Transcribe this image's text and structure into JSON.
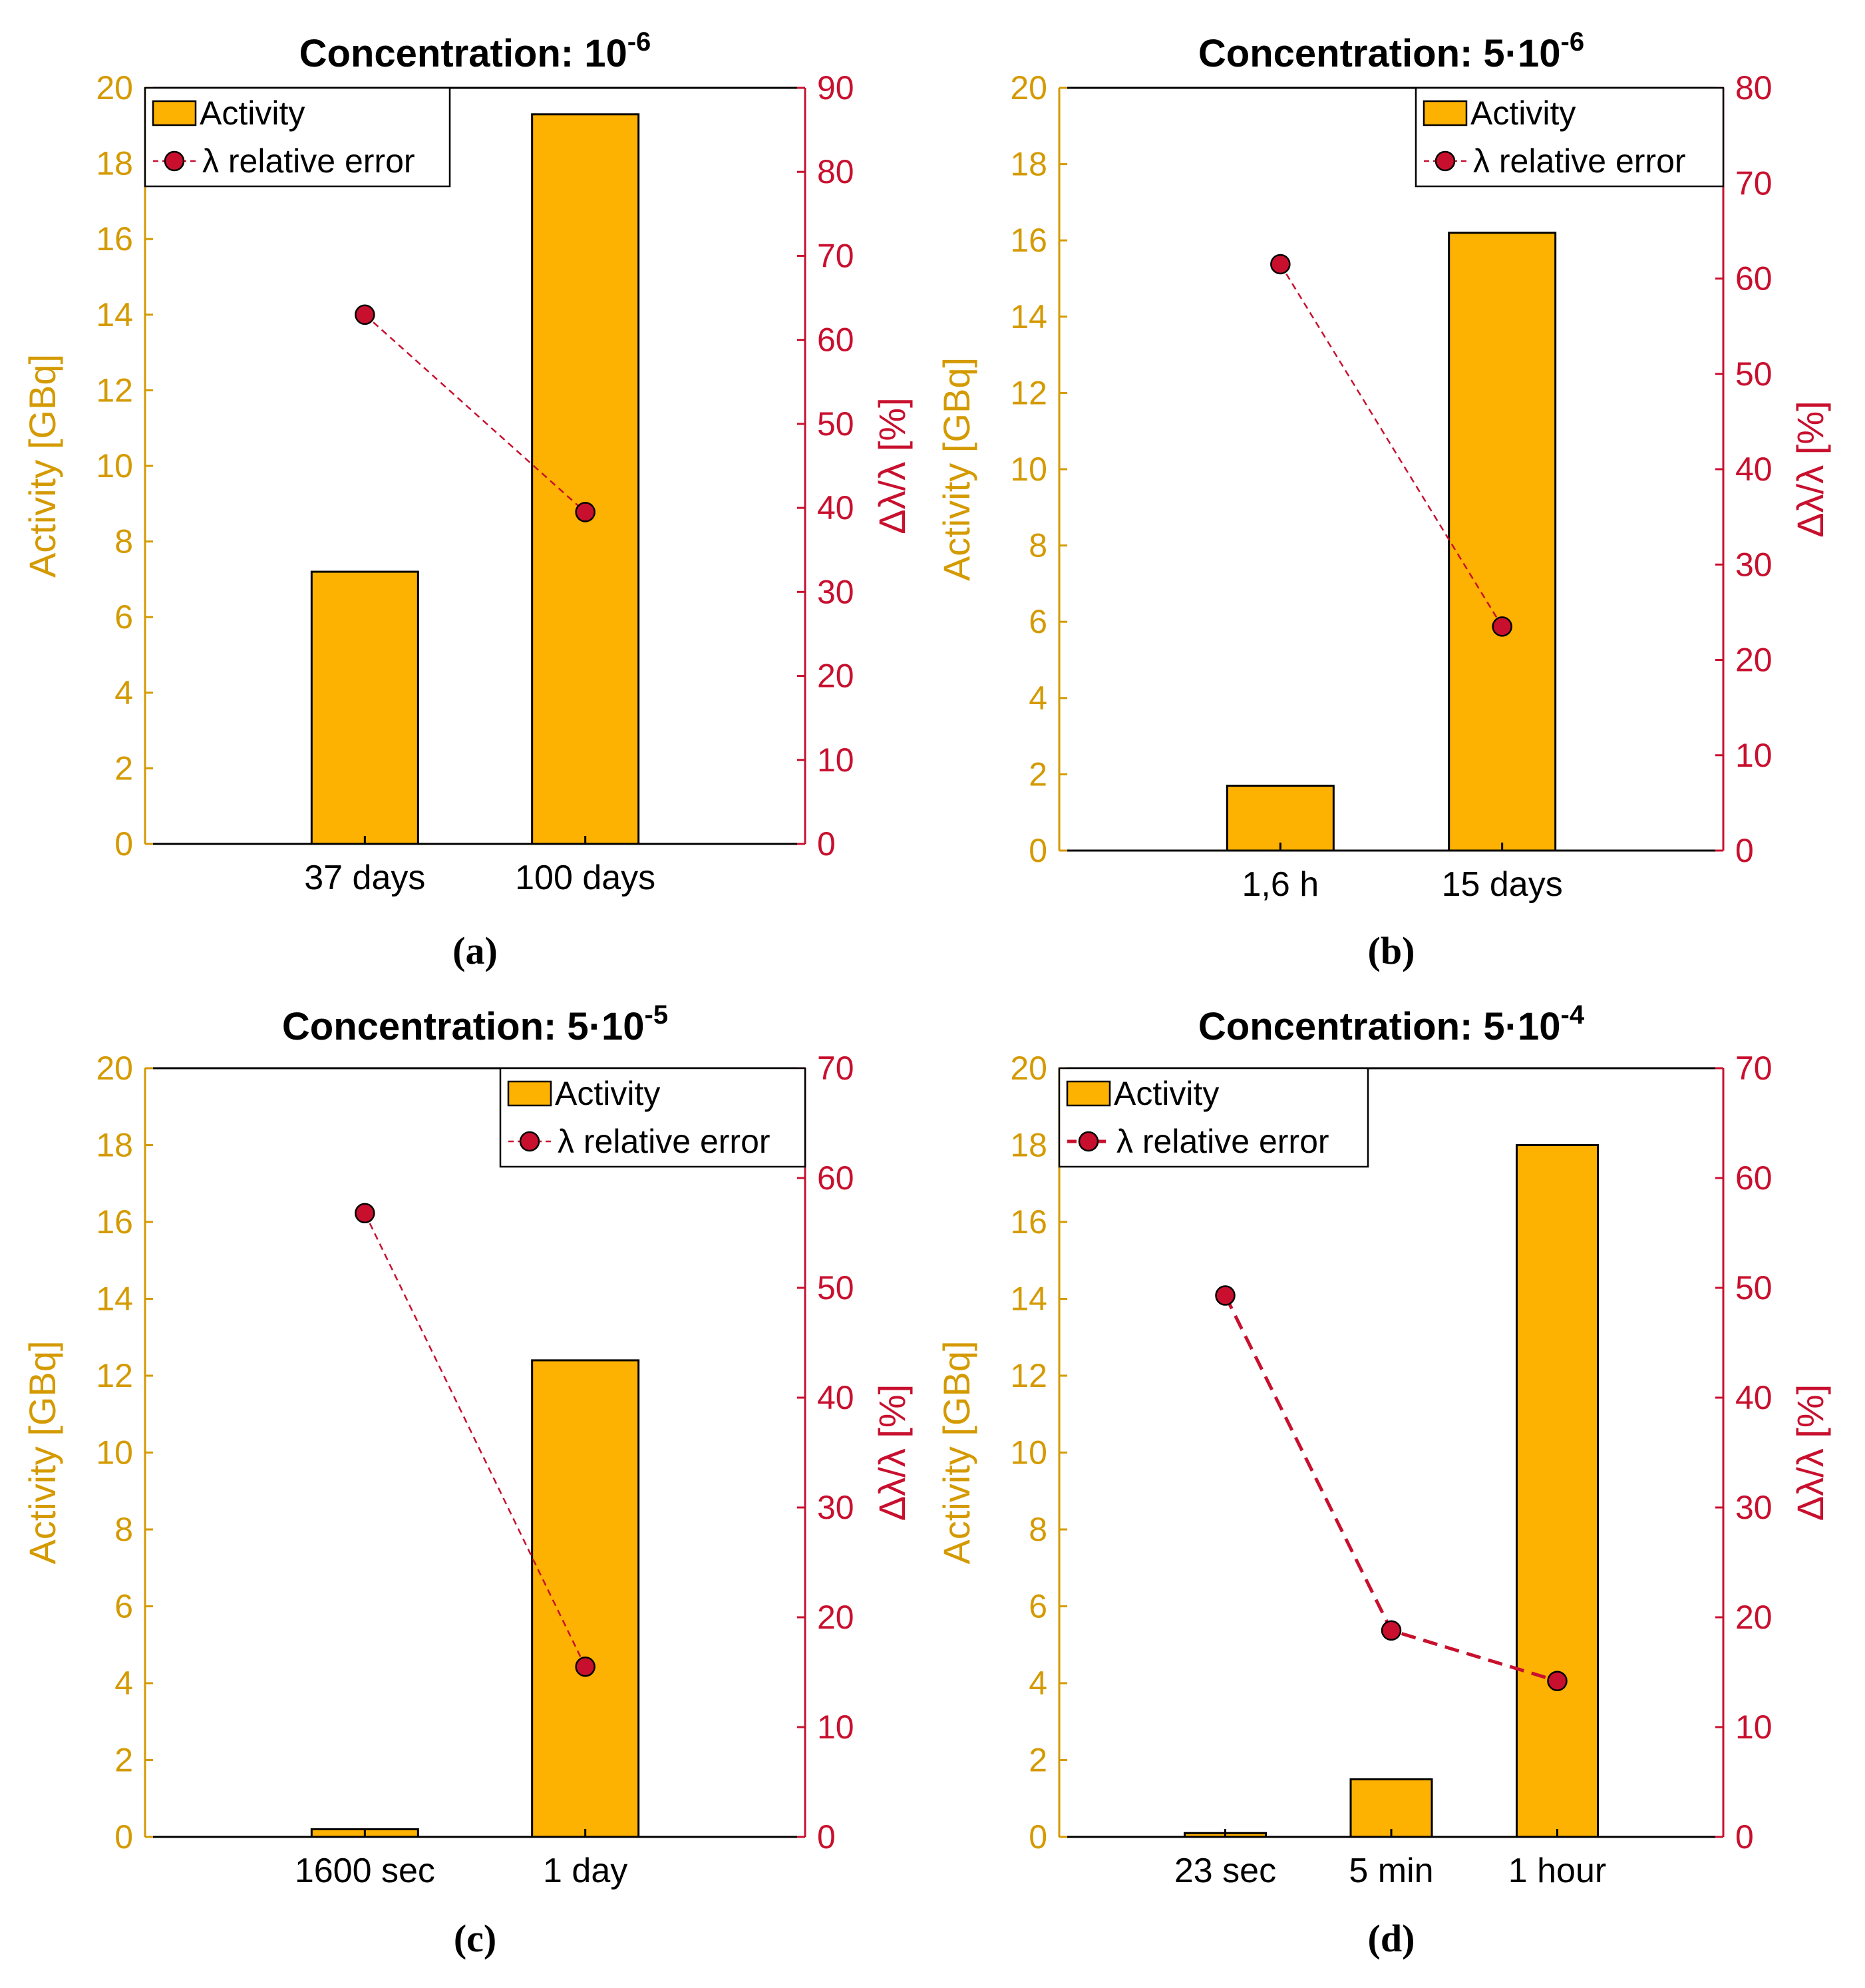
{
  "colors": {
    "activity": "#FDB100",
    "activity_axis": "#D49A00",
    "error": "#C8102E",
    "axes": "#000000"
  },
  "legend": {
    "activity": "Activity",
    "error": "λ relative error"
  },
  "chart_data": [
    {
      "type": "bar",
      "panel": "(a)",
      "title_prefix": "Concentration: ",
      "title_base": "10",
      "title_exp": "-6",
      "categories": [
        "37 days",
        "100 days"
      ],
      "series": [
        {
          "name": "Activity",
          "axis": "left",
          "values": [
            7.2,
            19.3
          ]
        },
        {
          "name": "λ relative error",
          "axis": "right",
          "type": "line",
          "style": "dashed",
          "values": [
            63,
            39.5
          ]
        }
      ],
      "ylabel_left": "Activity [GBq]",
      "ylabel_right": "Δλ/λ [%]",
      "ylim_left": [
        0,
        20
      ],
      "ylim_right": [
        0,
        90
      ],
      "yticks_left": [
        0,
        2,
        4,
        6,
        8,
        10,
        12,
        14,
        16,
        18,
        20
      ],
      "yticks_right": [
        0,
        10,
        20,
        30,
        40,
        50,
        60,
        70,
        80,
        90
      ],
      "legend_position": "top-left"
    },
    {
      "type": "bar",
      "panel": "(b)",
      "title_prefix": "Concentration: 5·",
      "title_base": "10",
      "title_exp": "-6",
      "categories": [
        "1,6 h",
        "15 days"
      ],
      "series": [
        {
          "name": "Activity",
          "axis": "left",
          "values": [
            1.7,
            16.2
          ]
        },
        {
          "name": "λ relative error",
          "axis": "right",
          "type": "line",
          "style": "dashed",
          "values": [
            61.5,
            23.5
          ]
        }
      ],
      "ylabel_left": "Activity [GBq]",
      "ylabel_right": "Δλ/λ [%]",
      "ylim_left": [
        0,
        20
      ],
      "ylim_right": [
        0,
        80
      ],
      "yticks_left": [
        0,
        2,
        4,
        6,
        8,
        10,
        12,
        14,
        16,
        18,
        20
      ],
      "yticks_right": [
        0,
        10,
        20,
        30,
        40,
        50,
        60,
        70,
        80
      ],
      "legend_position": "top-right"
    },
    {
      "type": "bar",
      "panel": "(c)",
      "title_prefix": "Concentration: 5·",
      "title_base": "10",
      "title_exp": "-5",
      "categories": [
        "1600 sec",
        "1 day"
      ],
      "series": [
        {
          "name": "Activity",
          "axis": "left",
          "values": [
            0.2,
            12.4
          ]
        },
        {
          "name": "λ relative error",
          "axis": "right",
          "type": "line",
          "style": "dashed",
          "values": [
            56.8,
            15.5
          ]
        }
      ],
      "ylabel_left": "Activity [GBq]",
      "ylabel_right": "Δλ/λ [%]",
      "ylim_left": [
        0,
        20
      ],
      "ylim_right": [
        0,
        70
      ],
      "yticks_left": [
        0,
        2,
        4,
        6,
        8,
        10,
        12,
        14,
        16,
        18,
        20
      ],
      "yticks_right": [
        0,
        10,
        20,
        30,
        40,
        50,
        60,
        70
      ],
      "legend_position": "top-right"
    },
    {
      "type": "bar",
      "panel": "(d)",
      "title_prefix": "Concentration: 5·",
      "title_base": "10",
      "title_exp": "-4",
      "categories": [
        "23 sec",
        "5 min",
        "1 hour"
      ],
      "series": [
        {
          "name": "Activity",
          "axis": "left",
          "values": [
            0.1,
            1.5,
            18.0
          ]
        },
        {
          "name": "λ relative error",
          "axis": "right",
          "type": "line",
          "style": "dashed",
          "values": [
            49.3,
            18.8,
            14.2
          ]
        }
      ],
      "ylabel_left": "Activity [GBq]",
      "ylabel_right": "Δλ/λ [%]",
      "ylim_left": [
        0,
        20
      ],
      "ylim_right": [
        0,
        70
      ],
      "yticks_left": [
        0,
        2,
        4,
        6,
        8,
        10,
        12,
        14,
        16,
        18,
        20
      ],
      "yticks_right": [
        0,
        10,
        20,
        30,
        40,
        50,
        60,
        70
      ],
      "legend_position": "top-left"
    }
  ]
}
